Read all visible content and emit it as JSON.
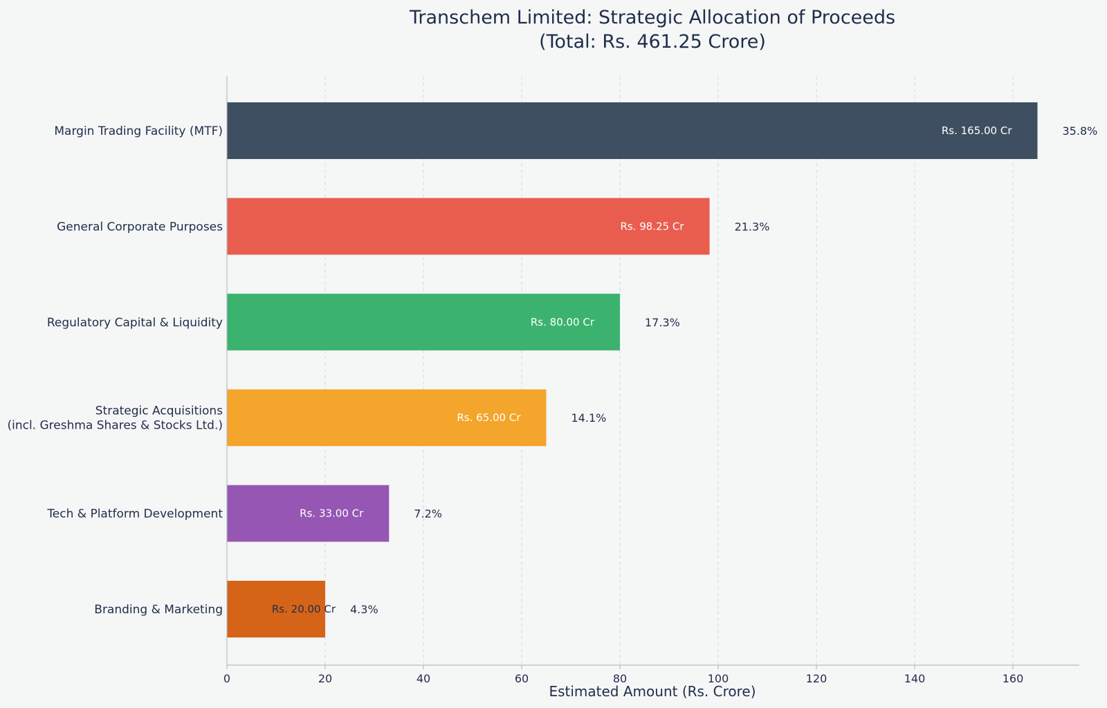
{
  "chart_data": {
    "type": "bar",
    "orientation": "horizontal",
    "title": "Transchem Limited: Strategic Allocation of Proceeds",
    "subtitle": "(Total: Rs. 461.25 Crore)",
    "xlabel": "Estimated Amount (Rs. Crore)",
    "ylabel": "",
    "xlim": [
      0,
      174
    ],
    "xticks": [
      0,
      20,
      40,
      60,
      80,
      100,
      120,
      140,
      160
    ],
    "grid": true,
    "categories": [
      "Margin Trading Facility (MTF)",
      "General Corporate Purposes",
      "Regulatory Capital & Liquidity",
      "Strategic Acquisitions\n(incl. Greshma Shares & Stocks Ltd.)",
      "Tech & Platform Development",
      "Branding & Marketing"
    ],
    "values": [
      165.0,
      98.25,
      80.0,
      65.0,
      33.0,
      20.0
    ],
    "value_labels": [
      "Rs. 165.00 Cr",
      "Rs. 98.25 Cr",
      "Rs. 80.00 Cr",
      "Rs. 65.00 Cr",
      "Rs. 33.00 Cr",
      "Rs. 20.00 Cr"
    ],
    "percent_labels": [
      "35.8%",
      "21.3%",
      "17.3%",
      "14.1%",
      "7.2%",
      "4.3%"
    ],
    "colors": [
      "#3e4f61",
      "#e85d4e",
      "#3bb36f",
      "#f4a52b",
      "#9557b3",
      "#d56419"
    ]
  }
}
